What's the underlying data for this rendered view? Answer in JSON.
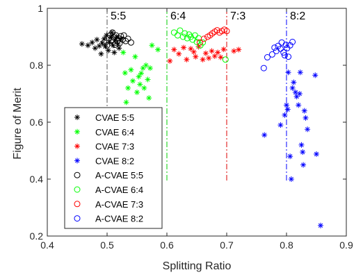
{
  "chart_data": {
    "type": "scatter",
    "title": "",
    "xlabel": "Splitting Ratio",
    "ylabel": "Figure of Merit",
    "xlim": [
      0.4,
      0.9
    ],
    "ylim": [
      0.2,
      1.0
    ],
    "xticks": [
      "0.4",
      "0.5",
      "0.6",
      "0.7",
      "0.8",
      "0.9"
    ],
    "yticks": [
      "0.2",
      "0.4",
      "0.6",
      "0.8",
      "1"
    ],
    "grid": false,
    "legend_position": "bottom-left",
    "reference_lines": [
      {
        "label": "5:5",
        "x": 0.5,
        "color": "#555555"
      },
      {
        "label": "6:4",
        "x": 0.6,
        "color": "#00cc00"
      },
      {
        "label": "7:3",
        "x": 0.7,
        "color": "#dd0000"
      },
      {
        "label": "8:2",
        "x": 0.8,
        "color": "#0000ff"
      }
    ],
    "series": [
      {
        "name": "CVAE 5:5",
        "marker": "star",
        "color": "#000000",
        "points": [
          [
            0.458,
            0.875
          ],
          [
            0.468,
            0.87
          ],
          [
            0.475,
            0.88
          ],
          [
            0.48,
            0.86
          ],
          [
            0.483,
            0.89
          ],
          [
            0.487,
            0.868
          ],
          [
            0.49,
            0.84
          ],
          [
            0.492,
            0.878
          ],
          [
            0.495,
            0.893
          ],
          [
            0.497,
            0.866
          ],
          [
            0.499,
            0.905
          ],
          [
            0.502,
            0.852
          ],
          [
            0.504,
            0.88
          ],
          [
            0.506,
            0.898
          ],
          [
            0.508,
            0.915
          ],
          [
            0.51,
            0.87
          ],
          [
            0.512,
            0.845
          ],
          [
            0.514,
            0.888
          ],
          [
            0.516,
            0.9
          ],
          [
            0.518,
            0.875
          ],
          [
            0.52,
            0.86
          ],
          [
            0.523,
            0.892
          ]
        ]
      },
      {
        "name": "CVAE 6:4",
        "marker": "star",
        "color": "#00ff00",
        "points": [
          [
            0.527,
            0.845
          ],
          [
            0.53,
            0.773
          ],
          [
            0.532,
            0.67
          ],
          [
            0.535,
            0.72
          ],
          [
            0.54,
            0.784
          ],
          [
            0.543,
            0.745
          ],
          [
            0.547,
            0.83
          ],
          [
            0.55,
            0.705
          ],
          [
            0.553,
            0.76
          ],
          [
            0.555,
            0.733
          ],
          [
            0.557,
            0.772
          ],
          [
            0.56,
            0.79
          ],
          [
            0.562,
            0.72
          ],
          [
            0.565,
            0.8
          ],
          [
            0.568,
            0.75
          ],
          [
            0.57,
            0.685
          ],
          [
            0.572,
            0.79
          ],
          [
            0.575,
            0.87
          ],
          [
            0.585,
            0.855
          ]
        ]
      },
      {
        "name": "CVAE 7:3",
        "marker": "star",
        "color": "#ff0000",
        "points": [
          [
            0.605,
            0.815
          ],
          [
            0.612,
            0.855
          ],
          [
            0.62,
            0.84
          ],
          [
            0.628,
            0.862
          ],
          [
            0.633,
            0.82
          ],
          [
            0.64,
            0.858
          ],
          [
            0.645,
            0.847
          ],
          [
            0.648,
            0.83
          ],
          [
            0.653,
            0.865
          ],
          [
            0.66,
            0.82
          ],
          [
            0.665,
            0.842
          ],
          [
            0.67,
            0.825
          ],
          [
            0.675,
            0.85
          ],
          [
            0.68,
            0.832
          ],
          [
            0.685,
            0.845
          ],
          [
            0.69,
            0.828
          ],
          [
            0.695,
            0.856
          ],
          [
            0.712,
            0.85
          ],
          [
            0.72,
            0.855
          ]
        ]
      },
      {
        "name": "CVAE 8:2",
        "marker": "star",
        "color": "#0000ff",
        "points": [
          [
            0.763,
            0.555
          ],
          [
            0.79,
            0.59
          ],
          [
            0.797,
            0.625
          ],
          [
            0.8,
            0.66
          ],
          [
            0.802,
            0.645
          ],
          [
            0.803,
            0.775
          ],
          [
            0.806,
            0.48
          ],
          [
            0.808,
            0.4
          ],
          [
            0.81,
            0.72
          ],
          [
            0.812,
            0.74
          ],
          [
            0.815,
            0.705
          ],
          [
            0.817,
            0.69
          ],
          [
            0.82,
            0.66
          ],
          [
            0.822,
            0.7
          ],
          [
            0.823,
            0.775
          ],
          [
            0.825,
            0.52
          ],
          [
            0.827,
            0.495
          ],
          [
            0.828,
            0.45
          ],
          [
            0.83,
            0.64
          ],
          [
            0.832,
            0.615
          ],
          [
            0.835,
            0.575
          ],
          [
            0.848,
            0.765
          ],
          [
            0.85,
            0.488
          ],
          [
            0.857,
            0.237
          ]
        ]
      },
      {
        "name": "A-CVAE 5:5",
        "marker": "circle",
        "color": "#000000",
        "points": [
          [
            0.495,
            0.88
          ],
          [
            0.5,
            0.87
          ],
          [
            0.503,
            0.895
          ],
          [
            0.505,
            0.905
          ],
          [
            0.507,
            0.888
          ],
          [
            0.509,
            0.915
          ],
          [
            0.511,
            0.898
          ],
          [
            0.513,
            0.872
          ],
          [
            0.515,
            0.905
          ],
          [
            0.517,
            0.885
          ],
          [
            0.519,
            0.895
          ],
          [
            0.521,
            0.878
          ],
          [
            0.523,
            0.902
          ],
          [
            0.526,
            0.89
          ],
          [
            0.528,
            0.905
          ],
          [
            0.531,
            0.885
          ],
          [
            0.535,
            0.893
          ],
          [
            0.54,
            0.88
          ]
        ]
      },
      {
        "name": "A-CVAE 6:4",
        "marker": "circle",
        "color": "#00ff00",
        "points": [
          [
            0.612,
            0.915
          ],
          [
            0.618,
            0.905
          ],
          [
            0.622,
            0.922
          ],
          [
            0.627,
            0.9
          ],
          [
            0.63,
            0.912
          ],
          [
            0.634,
            0.895
          ],
          [
            0.637,
            0.908
          ],
          [
            0.64,
            0.9
          ],
          [
            0.643,
            0.89
          ],
          [
            0.647,
            0.905
          ],
          [
            0.65,
            0.882
          ],
          [
            0.653,
            0.895
          ],
          [
            0.656,
            0.87
          ],
          [
            0.66,
            0.88
          ],
          [
            0.698,
            0.82
          ]
        ]
      },
      {
        "name": "A-CVAE 7:3",
        "marker": "circle",
        "color": "#ff0000",
        "points": [
          [
            0.655,
            0.88
          ],
          [
            0.662,
            0.893
          ],
          [
            0.668,
            0.9
          ],
          [
            0.672,
            0.905
          ],
          [
            0.676,
            0.912
          ],
          [
            0.68,
            0.918
          ],
          [
            0.684,
            0.923
          ],
          [
            0.688,
            0.915
          ],
          [
            0.692,
            0.92
          ],
          [
            0.696,
            0.925
          ],
          [
            0.7,
            0.92
          ]
        ]
      },
      {
        "name": "A-CVAE 8:2",
        "marker": "circle",
        "color": "#0000ff",
        "points": [
          [
            0.762,
            0.79
          ],
          [
            0.768,
            0.828
          ],
          [
            0.776,
            0.838
          ],
          [
            0.78,
            0.862
          ],
          [
            0.783,
            0.85
          ],
          [
            0.786,
            0.868
          ],
          [
            0.79,
            0.858
          ],
          [
            0.792,
            0.88
          ],
          [
            0.795,
            0.845
          ],
          [
            0.797,
            0.835
          ],
          [
            0.799,
            0.872
          ],
          [
            0.801,
            0.86
          ],
          [
            0.803,
            0.83
          ],
          [
            0.806,
            0.87
          ],
          [
            0.81,
            0.882
          ]
        ]
      }
    ]
  }
}
